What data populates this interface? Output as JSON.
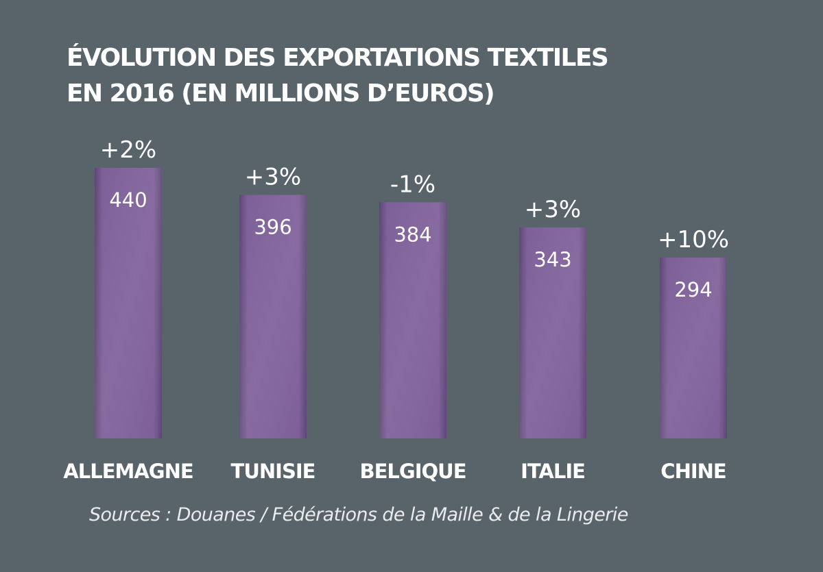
{
  "chart_data": {
    "type": "bar",
    "title_lines": [
      "ÉVOLUTION DES EXPORTATIONS TEXTILES",
      "EN 2016 (EN MILLIONS D’EUROS)"
    ],
    "categories": [
      "ALLEMAGNE",
      "TUNISIE",
      "BELGIQUE",
      "ITALIE",
      "CHINE"
    ],
    "values": [
      440,
      396,
      384,
      343,
      294
    ],
    "value_labels": [
      "440",
      "396",
      "384",
      "343",
      "294"
    ],
    "change_labels": [
      "+2%",
      "+3%",
      "-1%",
      "+3%",
      "+10%"
    ],
    "xlabel": "",
    "ylabel": "",
    "grid": false,
    "legend": "none",
    "colors": {
      "background": "#59636a",
      "bar": "#7d5f98",
      "bar_dark": "#5e4676",
      "bar_highlight": "#9a7cb4",
      "text": "#ffffff"
    }
  },
  "source": "Sources : Douanes / Fédérations de la Maille & de la Lingerie"
}
